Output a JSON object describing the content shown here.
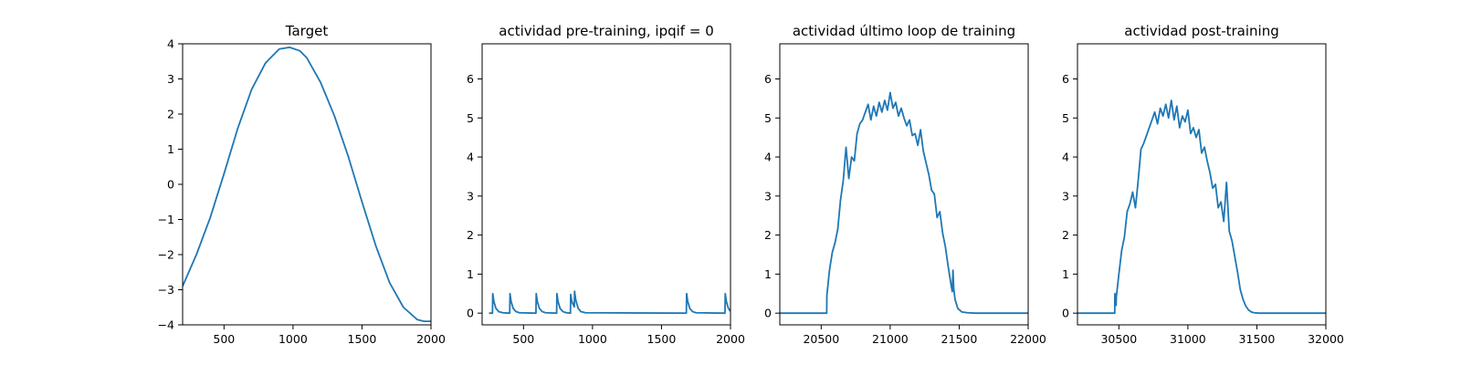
{
  "figure": {
    "background": "#ffffff",
    "line_color": "#1f77b4"
  },
  "chart_data": [
    {
      "type": "line",
      "title": "Target",
      "xlim": [
        200,
        2000
      ],
      "ylim": [
        -4,
        4
      ],
      "xticks": [
        500,
        1000,
        1500,
        2000
      ],
      "xtick_labels": [
        "500",
        "1000",
        "1500",
        "2000"
      ],
      "yticks": [
        -4,
        -3,
        -2,
        -1,
        0,
        1,
        2,
        3,
        4
      ],
      "ytick_labels": [
        "−4",
        "−3",
        "−2",
        "−1",
        "0",
        "1",
        "2",
        "3",
        "4"
      ],
      "series": [
        {
          "x": [
            200,
            300,
            400,
            500,
            600,
            700,
            800,
            900,
            975,
            1050,
            1100,
            1200,
            1300,
            1400,
            1500,
            1600,
            1700,
            1800,
            1900,
            1950,
            2000
          ],
          "y": [
            -2.9,
            -2.0,
            -0.95,
            0.3,
            1.6,
            2.7,
            3.45,
            3.85,
            3.9,
            3.8,
            3.6,
            2.9,
            1.95,
            0.8,
            -0.5,
            -1.75,
            -2.8,
            -3.5,
            -3.85,
            -3.9,
            -3.9
          ]
        }
      ]
    },
    {
      "type": "line",
      "title": "actividad pre-training, ipqif = 0",
      "xlim": [
        200,
        2000
      ],
      "ylim": [
        -0.3,
        6.9
      ],
      "xticks": [
        500,
        1000,
        1500,
        2000
      ],
      "xtick_labels": [
        "500",
        "1000",
        "1500",
        "2000"
      ],
      "yticks": [
        0,
        1,
        2,
        3,
        4,
        5,
        6
      ],
      "ytick_labels": [
        "0",
        "1",
        "2",
        "3",
        "4",
        "5",
        "6"
      ],
      "series": [
        {
          "x": [
            250,
            275,
            277,
            285,
            300,
            320,
            350,
            400,
            402,
            410,
            425,
            445,
            470,
            590,
            592,
            600,
            615,
            635,
            660,
            740,
            742,
            750,
            765,
            785,
            810,
            840,
            842,
            850,
            868,
            870,
            878,
            895,
            915,
            950,
            1680,
            1682,
            1690,
            1705,
            1725,
            1750,
            1960,
            1962,
            1970,
            1985,
            2000
          ],
          "y": [
            0,
            0,
            0.5,
            0.3,
            0.12,
            0.04,
            0.01,
            0,
            0.5,
            0.3,
            0.12,
            0.04,
            0.01,
            0,
            0.5,
            0.3,
            0.12,
            0.04,
            0.01,
            0,
            0.5,
            0.3,
            0.12,
            0.04,
            0.01,
            0,
            0.48,
            0.3,
            0.16,
            0.56,
            0.35,
            0.13,
            0.04,
            0.01,
            0,
            0.5,
            0.3,
            0.12,
            0.04,
            0.01,
            0,
            0.5,
            0.3,
            0.12,
            0.05
          ]
        }
      ]
    },
    {
      "type": "line",
      "title": "actividad último loop de training",
      "xlim": [
        20200,
        22000
      ],
      "ylim": [
        -0.3,
        6.9
      ],
      "xticks": [
        20500,
        21000,
        21500,
        22000
      ],
      "xtick_labels": [
        "20500",
        "21000",
        "21500",
        "22000"
      ],
      "yticks": [
        0,
        1,
        2,
        3,
        4,
        5,
        6
      ],
      "ytick_labels": [
        "0",
        "1",
        "2",
        "3",
        "4",
        "5",
        "6"
      ],
      "series": [
        {
          "x": [
            20200,
            20540,
            20541,
            20560,
            20580,
            20600,
            20620,
            20640,
            20660,
            20680,
            20700,
            20720,
            20740,
            20760,
            20780,
            20800,
            20820,
            20840,
            20860,
            20880,
            20900,
            20920,
            20940,
            20960,
            20980,
            21000,
            21020,
            21040,
            21060,
            21080,
            21100,
            21120,
            21140,
            21160,
            21180,
            21200,
            21220,
            21240,
            21260,
            21280,
            21300,
            21320,
            21340,
            21360,
            21380,
            21400,
            21420,
            21440,
            21450,
            21455,
            21460,
            21470,
            21490,
            21520,
            21560,
            21620,
            22000
          ],
          "y": [
            0,
            0,
            0.45,
            1.1,
            1.55,
            1.8,
            2.15,
            2.9,
            3.4,
            4.25,
            3.45,
            4.0,
            3.9,
            4.6,
            4.85,
            4.95,
            5.15,
            5.35,
            4.95,
            5.3,
            5.05,
            5.4,
            5.15,
            5.45,
            5.2,
            5.65,
            5.25,
            5.4,
            5.05,
            5.25,
            5.0,
            4.8,
            4.95,
            4.55,
            4.6,
            4.3,
            4.7,
            4.15,
            3.85,
            3.55,
            3.15,
            3.05,
            2.45,
            2.6,
            2.05,
            1.7,
            1.2,
            0.75,
            0.55,
            1.1,
            0.65,
            0.35,
            0.12,
            0.03,
            0.01,
            0,
            0
          ]
        }
      ]
    },
    {
      "type": "line",
      "title": "actividad post-training",
      "xlim": [
        30200,
        32000
      ],
      "ylim": [
        -0.3,
        6.9
      ],
      "xticks": [
        30500,
        31000,
        31500,
        32000
      ],
      "xtick_labels": [
        "30500",
        "31000",
        "31500",
        "32000"
      ],
      "yticks": [
        0,
        1,
        2,
        3,
        4,
        5,
        6
      ],
      "ytick_labels": [
        "0",
        "1",
        "2",
        "3",
        "4",
        "5",
        "6"
      ],
      "series": [
        {
          "x": [
            30200,
            30470,
            30471,
            30480,
            30481,
            30500,
            30520,
            30540,
            30560,
            30580,
            30600,
            30620,
            30640,
            30660,
            30680,
            30700,
            30720,
            30740,
            30760,
            30780,
            30800,
            30820,
            30840,
            30860,
            30880,
            30900,
            30920,
            30940,
            30960,
            30980,
            31000,
            31020,
            31040,
            31060,
            31080,
            31100,
            31120,
            31140,
            31160,
            31180,
            31200,
            31220,
            31240,
            31260,
            31280,
            31300,
            31320,
            31340,
            31360,
            31380,
            31400,
            31420,
            31440,
            31460,
            31480,
            31520,
            31580,
            32000
          ],
          "y": [
            0,
            0,
            0.5,
            0.2,
            0.4,
            1.0,
            1.6,
            1.95,
            2.6,
            2.8,
            3.1,
            2.7,
            3.4,
            4.2,
            4.35,
            4.55,
            4.75,
            4.95,
            5.15,
            4.85,
            5.25,
            5.05,
            5.35,
            5.0,
            5.45,
            4.95,
            5.3,
            4.75,
            5.05,
            4.9,
            5.2,
            4.6,
            4.75,
            4.5,
            4.7,
            4.1,
            4.25,
            3.9,
            3.6,
            3.2,
            3.3,
            2.7,
            2.85,
            2.35,
            3.35,
            2.1,
            1.85,
            1.45,
            1.05,
            0.6,
            0.35,
            0.18,
            0.08,
            0.03,
            0.01,
            0,
            0,
            0
          ]
        }
      ]
    }
  ]
}
